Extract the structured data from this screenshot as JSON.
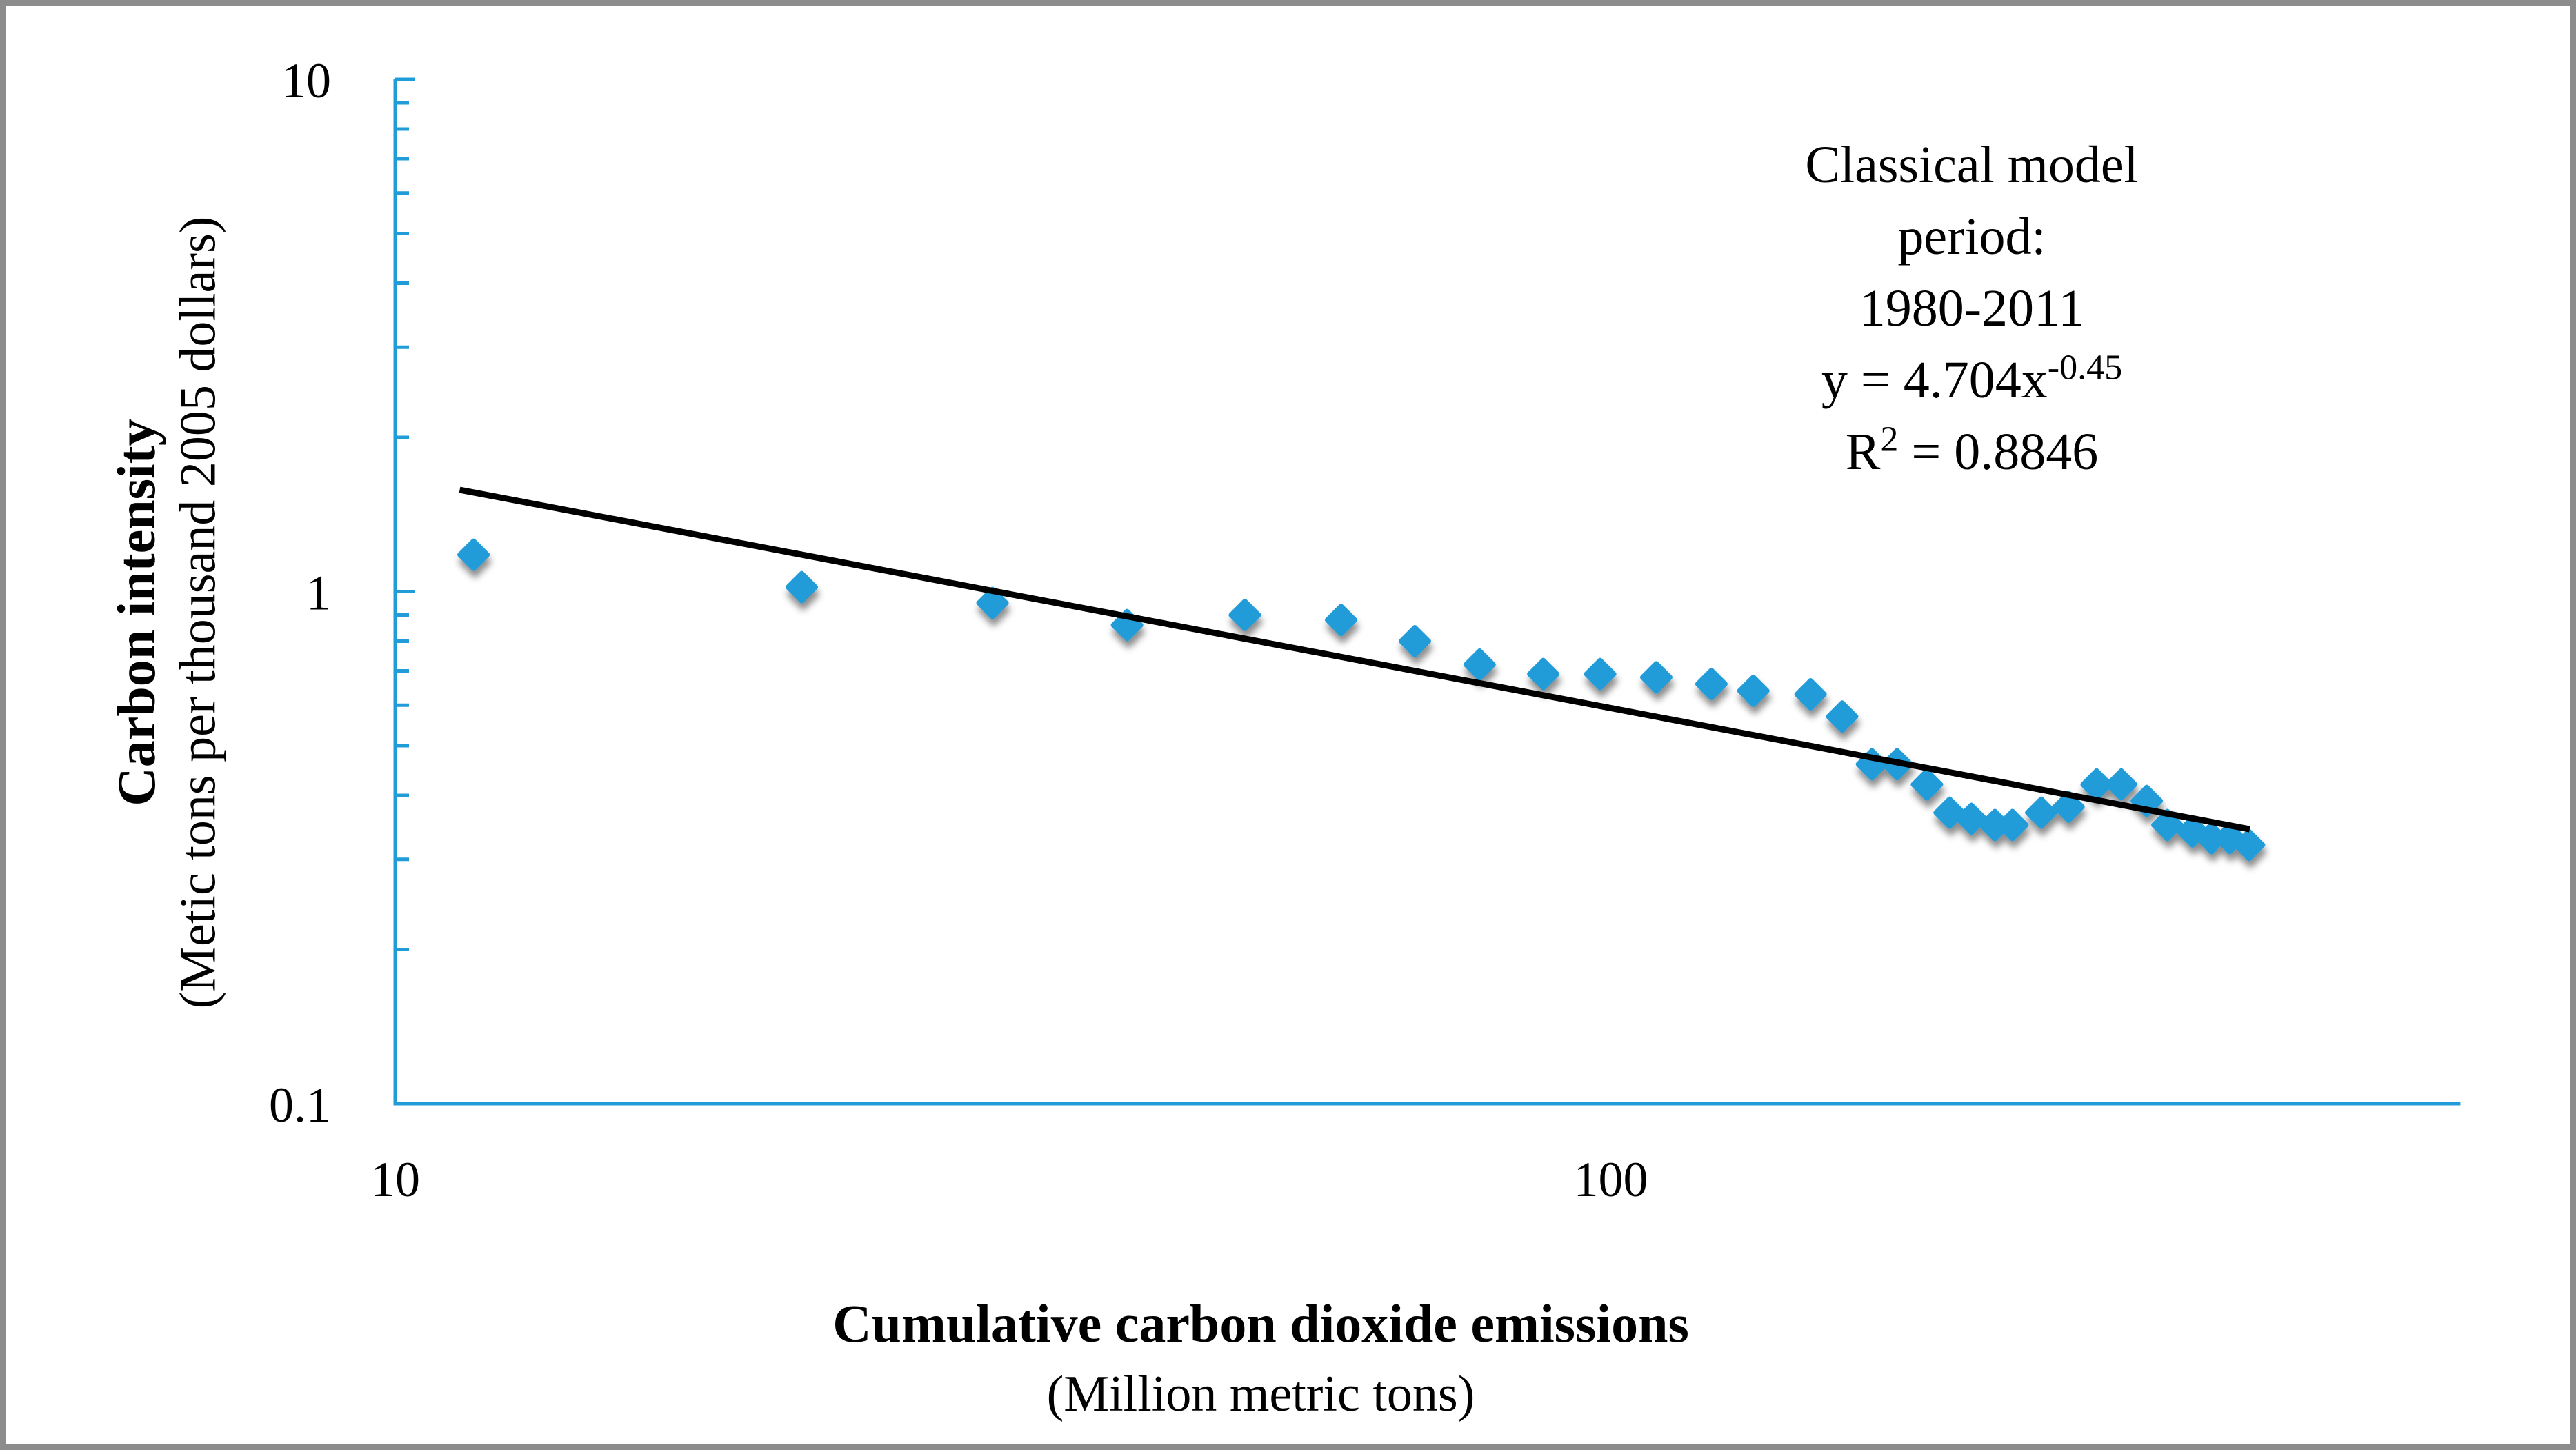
{
  "figure": {
    "background": "#ffffff",
    "frame_color": "#8c8c8c",
    "axis_color": "#209cd8",
    "marker_color": "#209cd8",
    "trendline_color": "#000000"
  },
  "y_axis": {
    "title": "Carbon intensity",
    "subtitle": "(Metic tons per thousand 2005 dollars)",
    "scale": "log",
    "min": 0.1,
    "max": 10,
    "major_ticks": [
      {
        "label": "10",
        "value": 10
      },
      {
        "label": "1",
        "value": 1
      },
      {
        "label": "0.1",
        "value": 0.1
      }
    ],
    "minor_ticks": [
      9,
      8,
      7,
      6,
      5,
      4,
      3,
      2,
      0.9,
      0.8,
      0.7,
      0.6,
      0.5,
      0.4,
      0.3,
      0.2
    ]
  },
  "x_axis": {
    "title": "Cumulative carbon dioxide emissions",
    "subtitle": "(Million metric tons)",
    "scale": "log",
    "min": 10,
    "max": 500,
    "major_ticks": [
      {
        "label": "10",
        "value": 10
      },
      {
        "label": "100",
        "value": 100
      }
    ],
    "minor_ticks": []
  },
  "annotation": {
    "line1": "Classical model",
    "line2": "period:",
    "line3": "1980-2011",
    "equation_base": "y = 4.704x",
    "equation_exponent": "-0.45",
    "r2_base": "R",
    "r2_sup": "2",
    "r2_rest": " = 0.8846"
  },
  "chart_data": {
    "type": "scatter",
    "title": "",
    "xlabel": "Cumulative carbon dioxide emissions (Million metric tons)",
    "ylabel": "Carbon intensity (Metic tons per thousand 2005 dollars)",
    "x_scale": "log",
    "y_scale": "log",
    "xlim": [
      10,
      500
    ],
    "ylim": [
      0.1,
      10
    ],
    "grid": false,
    "legend": false,
    "marker": "diamond",
    "points": [
      [
        11.6,
        1.18
      ],
      [
        21.6,
        1.02
      ],
      [
        31,
        0.95
      ],
      [
        40,
        0.86
      ],
      [
        50,
        0.9
      ],
      [
        60,
        0.88
      ],
      [
        69,
        0.8
      ],
      [
        78,
        0.72
      ],
      [
        88,
        0.69
      ],
      [
        98,
        0.69
      ],
      [
        109,
        0.68
      ],
      [
        121,
        0.66
      ],
      [
        131,
        0.64
      ],
      [
        146,
        0.63
      ],
      [
        155,
        0.57
      ],
      [
        164,
        0.46
      ],
      [
        172,
        0.46
      ],
      [
        182,
        0.42
      ],
      [
        190,
        0.37
      ],
      [
        198,
        0.36
      ],
      [
        207,
        0.35
      ],
      [
        214,
        0.35
      ],
      [
        226,
        0.37
      ],
      [
        238,
        0.38
      ],
      [
        251,
        0.42
      ],
      [
        263,
        0.42
      ],
      [
        276,
        0.39
      ],
      [
        287,
        0.35
      ],
      [
        301,
        0.34
      ],
      [
        312,
        0.33
      ],
      [
        323,
        0.33
      ],
      [
        335,
        0.32
      ]
    ],
    "trendline": {
      "type": "power",
      "a": 4.704,
      "b": -0.45,
      "x_start": 11.3,
      "x_end": 335.4,
      "r_squared": 0.8846
    }
  }
}
